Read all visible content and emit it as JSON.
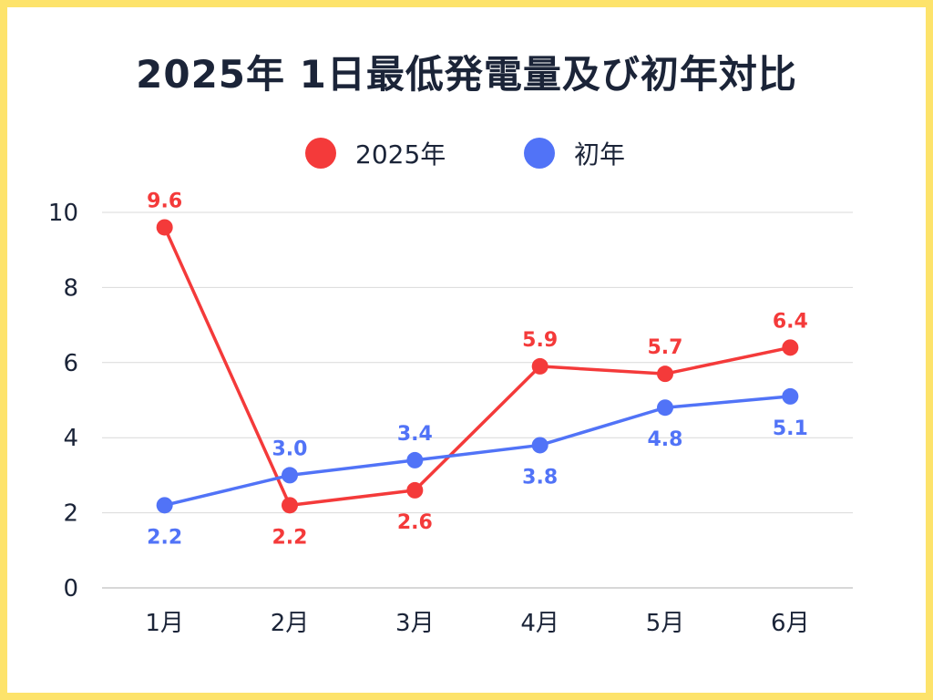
{
  "chart_data": {
    "type": "line",
    "title": "2025年 1日最低発電量及び初年対比",
    "categories": [
      "1月",
      "2月",
      "3月",
      "4月",
      "5月",
      "6月"
    ],
    "ylim": [
      0,
      10
    ],
    "yticks": [
      0,
      2,
      4,
      6,
      8,
      10
    ],
    "grid": true,
    "legend_position": "top-center",
    "series": [
      {
        "name": "2025年",
        "color": "#f43a3a",
        "values": [
          9.6,
          2.2,
          2.6,
          5.9,
          5.7,
          6.4
        ],
        "labels": [
          "9.6",
          "2.2",
          "2.6",
          "5.9",
          "5.7",
          "6.4"
        ],
        "label_side": [
          "above",
          "below",
          "below",
          "above",
          "above",
          "above"
        ]
      },
      {
        "name": "初年",
        "color": "#5173f7",
        "values": [
          2.2,
          3.0,
          3.4,
          3.8,
          4.8,
          5.1
        ],
        "labels": [
          "2.2",
          "3.0",
          "3.4",
          "3.8",
          "4.8",
          "5.1"
        ],
        "label_side": [
          "below",
          "above",
          "above",
          "below",
          "below",
          "below"
        ]
      }
    ]
  }
}
